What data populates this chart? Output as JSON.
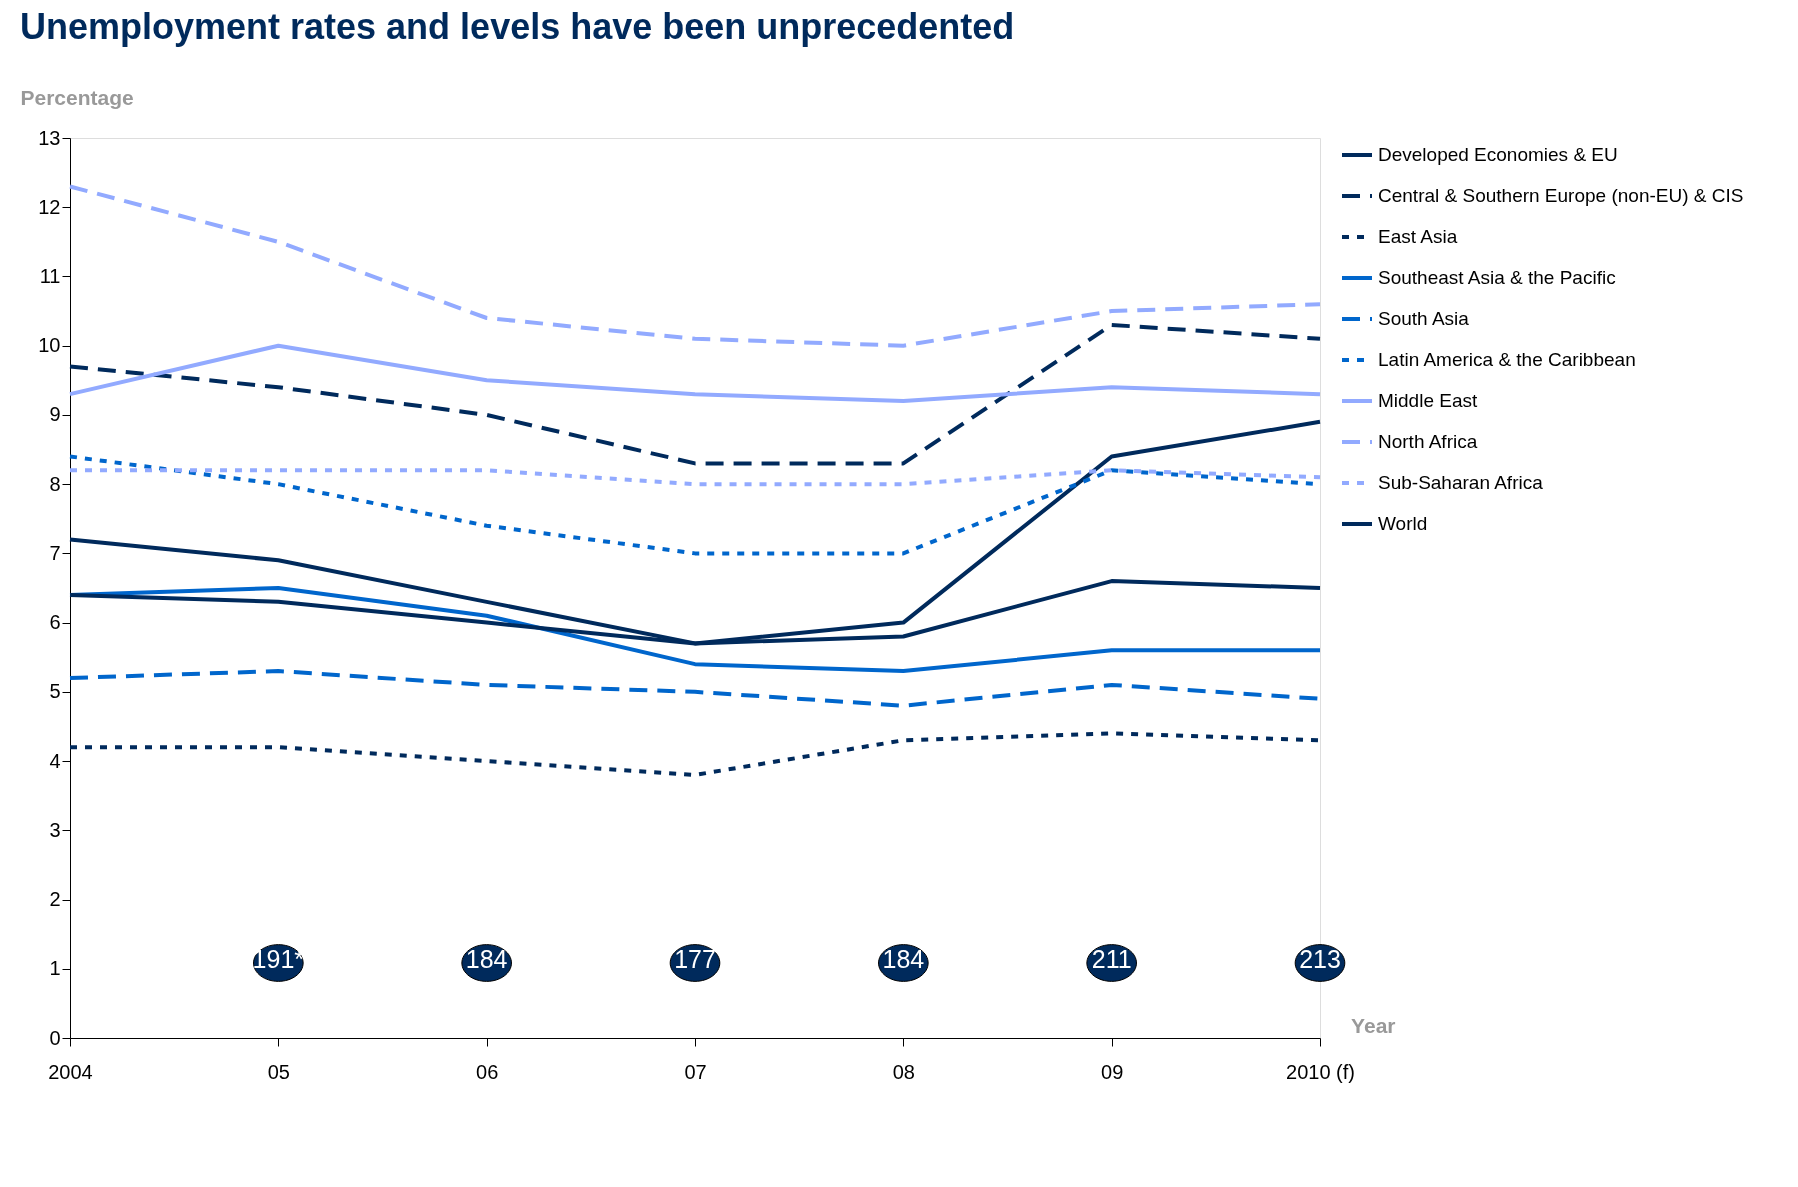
{
  "chart_data": {
    "type": "line",
    "title": "Unemployment rates and levels have been unprecedented",
    "xlabel": "Year",
    "ylabel": "Percentage",
    "categories": [
      "2004",
      "05",
      "06",
      "07",
      "08",
      "09",
      "2010 (f)"
    ],
    "ylim": [
      0,
      13
    ],
    "yticks": [
      0,
      1,
      2,
      3,
      4,
      5,
      6,
      7,
      8,
      9,
      10,
      11,
      12,
      13
    ],
    "grid": false,
    "legend": "top right",
    "marker": "none",
    "series": [
      {
        "name": "Developed Economies & EU",
        "color": "#002a5c",
        "line_style": "solid",
        "values": [
          7.2,
          6.9,
          6.3,
          5.7,
          6.0,
          8.4,
          8.9
        ]
      },
      {
        "name": "Central & Southern Europe (non-EU) & CIS",
        "color": "#002a5c",
        "line_style": "dashed",
        "values": [
          9.7,
          9.4,
          9.0,
          8.3,
          8.3,
          10.3,
          10.1
        ]
      },
      {
        "name": "East Asia",
        "color": "#002a5c",
        "line_style": "dotted",
        "values": [
          4.2,
          4.2,
          4.0,
          3.8,
          4.3,
          4.4,
          4.3
        ]
      },
      {
        "name": "Southeast Asia & the Pacific",
        "color": "#0066cc",
        "line_style": "solid",
        "values": [
          6.4,
          6.5,
          6.1,
          5.4,
          5.3,
          5.6,
          5.6
        ]
      },
      {
        "name": "South Asia",
        "color": "#0066cc",
        "line_style": "dashed",
        "values": [
          5.2,
          5.3,
          5.1,
          5.0,
          4.8,
          5.1,
          4.9
        ]
      },
      {
        "name": "Latin America & the Caribbean",
        "color": "#0066cc",
        "line_style": "dotted",
        "values": [
          8.4,
          8.0,
          7.4,
          7.0,
          7.0,
          8.2,
          8.0
        ]
      },
      {
        "name": "Middle East",
        "color": "#92aaff",
        "line_style": "solid",
        "values": [
          9.3,
          10.0,
          9.5,
          9.3,
          9.2,
          9.4,
          9.3
        ]
      },
      {
        "name": "North Africa",
        "color": "#92aaff",
        "line_style": "dashed",
        "values": [
          12.3,
          11.5,
          10.4,
          10.1,
          10.0,
          10.5,
          10.6
        ]
      },
      {
        "name": "Sub-Saharan Africa",
        "color": "#92aaff",
        "line_style": "dotted",
        "values": [
          8.2,
          8.2,
          8.2,
          8.0,
          8.0,
          8.2,
          8.1
        ]
      },
      {
        "name": "World",
        "color": "#002a5c",
        "line_style": "solid",
        "values": [
          6.4,
          6.3,
          6.0,
          5.7,
          5.8,
          6.6,
          6.5
        ]
      }
    ],
    "annotations": [
      "191*",
      "184",
      "177",
      "184",
      "211",
      "213"
    ]
  }
}
